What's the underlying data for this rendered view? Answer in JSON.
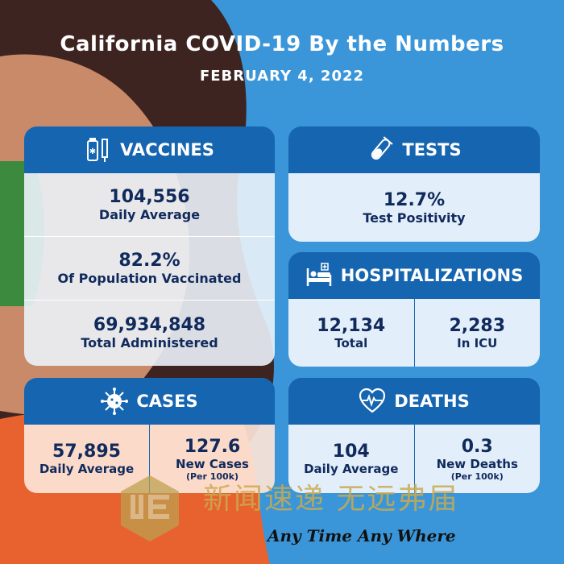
{
  "title": "California COVID-19 By the Numbers",
  "date": "FEBRUARY 4, 2022",
  "colors": {
    "background": "#3a96d8",
    "header": "#1565b0",
    "text": "#102a5c",
    "orange": "#e8622f",
    "green": "#3c8a3e",
    "hair": "#3d2421",
    "skin": "#c98a6a"
  },
  "vaccines": {
    "heading": "VACCINES",
    "icon": "vaccine-vial-syringe-icon",
    "rows": [
      {
        "value": "104,556",
        "label": "Daily Average"
      },
      {
        "value": "82.2%",
        "label": "Of Population Vaccinated"
      },
      {
        "value": "69,934,848",
        "label": "Total Administered"
      }
    ]
  },
  "tests": {
    "heading": "TESTS",
    "icon": "test-tube-icon",
    "value": "12.7%",
    "label": "Test Positivity"
  },
  "hospitalizations": {
    "heading": "HOSPITALIZATIONS",
    "icon": "hospital-bed-icon",
    "cols": [
      {
        "value": "12,134",
        "label": "Total"
      },
      {
        "value": "2,283",
        "label": "In ICU"
      }
    ]
  },
  "cases": {
    "heading": "CASES",
    "icon": "virus-icon",
    "cols": [
      {
        "value": "57,895",
        "label": "Daily Average",
        "note": ""
      },
      {
        "value": "127.6",
        "label": "New Cases",
        "note": "(Per 100k)"
      }
    ]
  },
  "deaths": {
    "heading": "DEATHS",
    "icon": "heart-pulse-icon",
    "cols": [
      {
        "value": "104",
        "label": "Daily Average",
        "note": ""
      },
      {
        "value": "0.3",
        "label": "New Deaths",
        "note": "(Per 100k)"
      }
    ]
  },
  "watermark": {
    "cn": "新闻速递  无远弗届",
    "en": "Any Time  Any Where",
    "logo": "UE"
  }
}
